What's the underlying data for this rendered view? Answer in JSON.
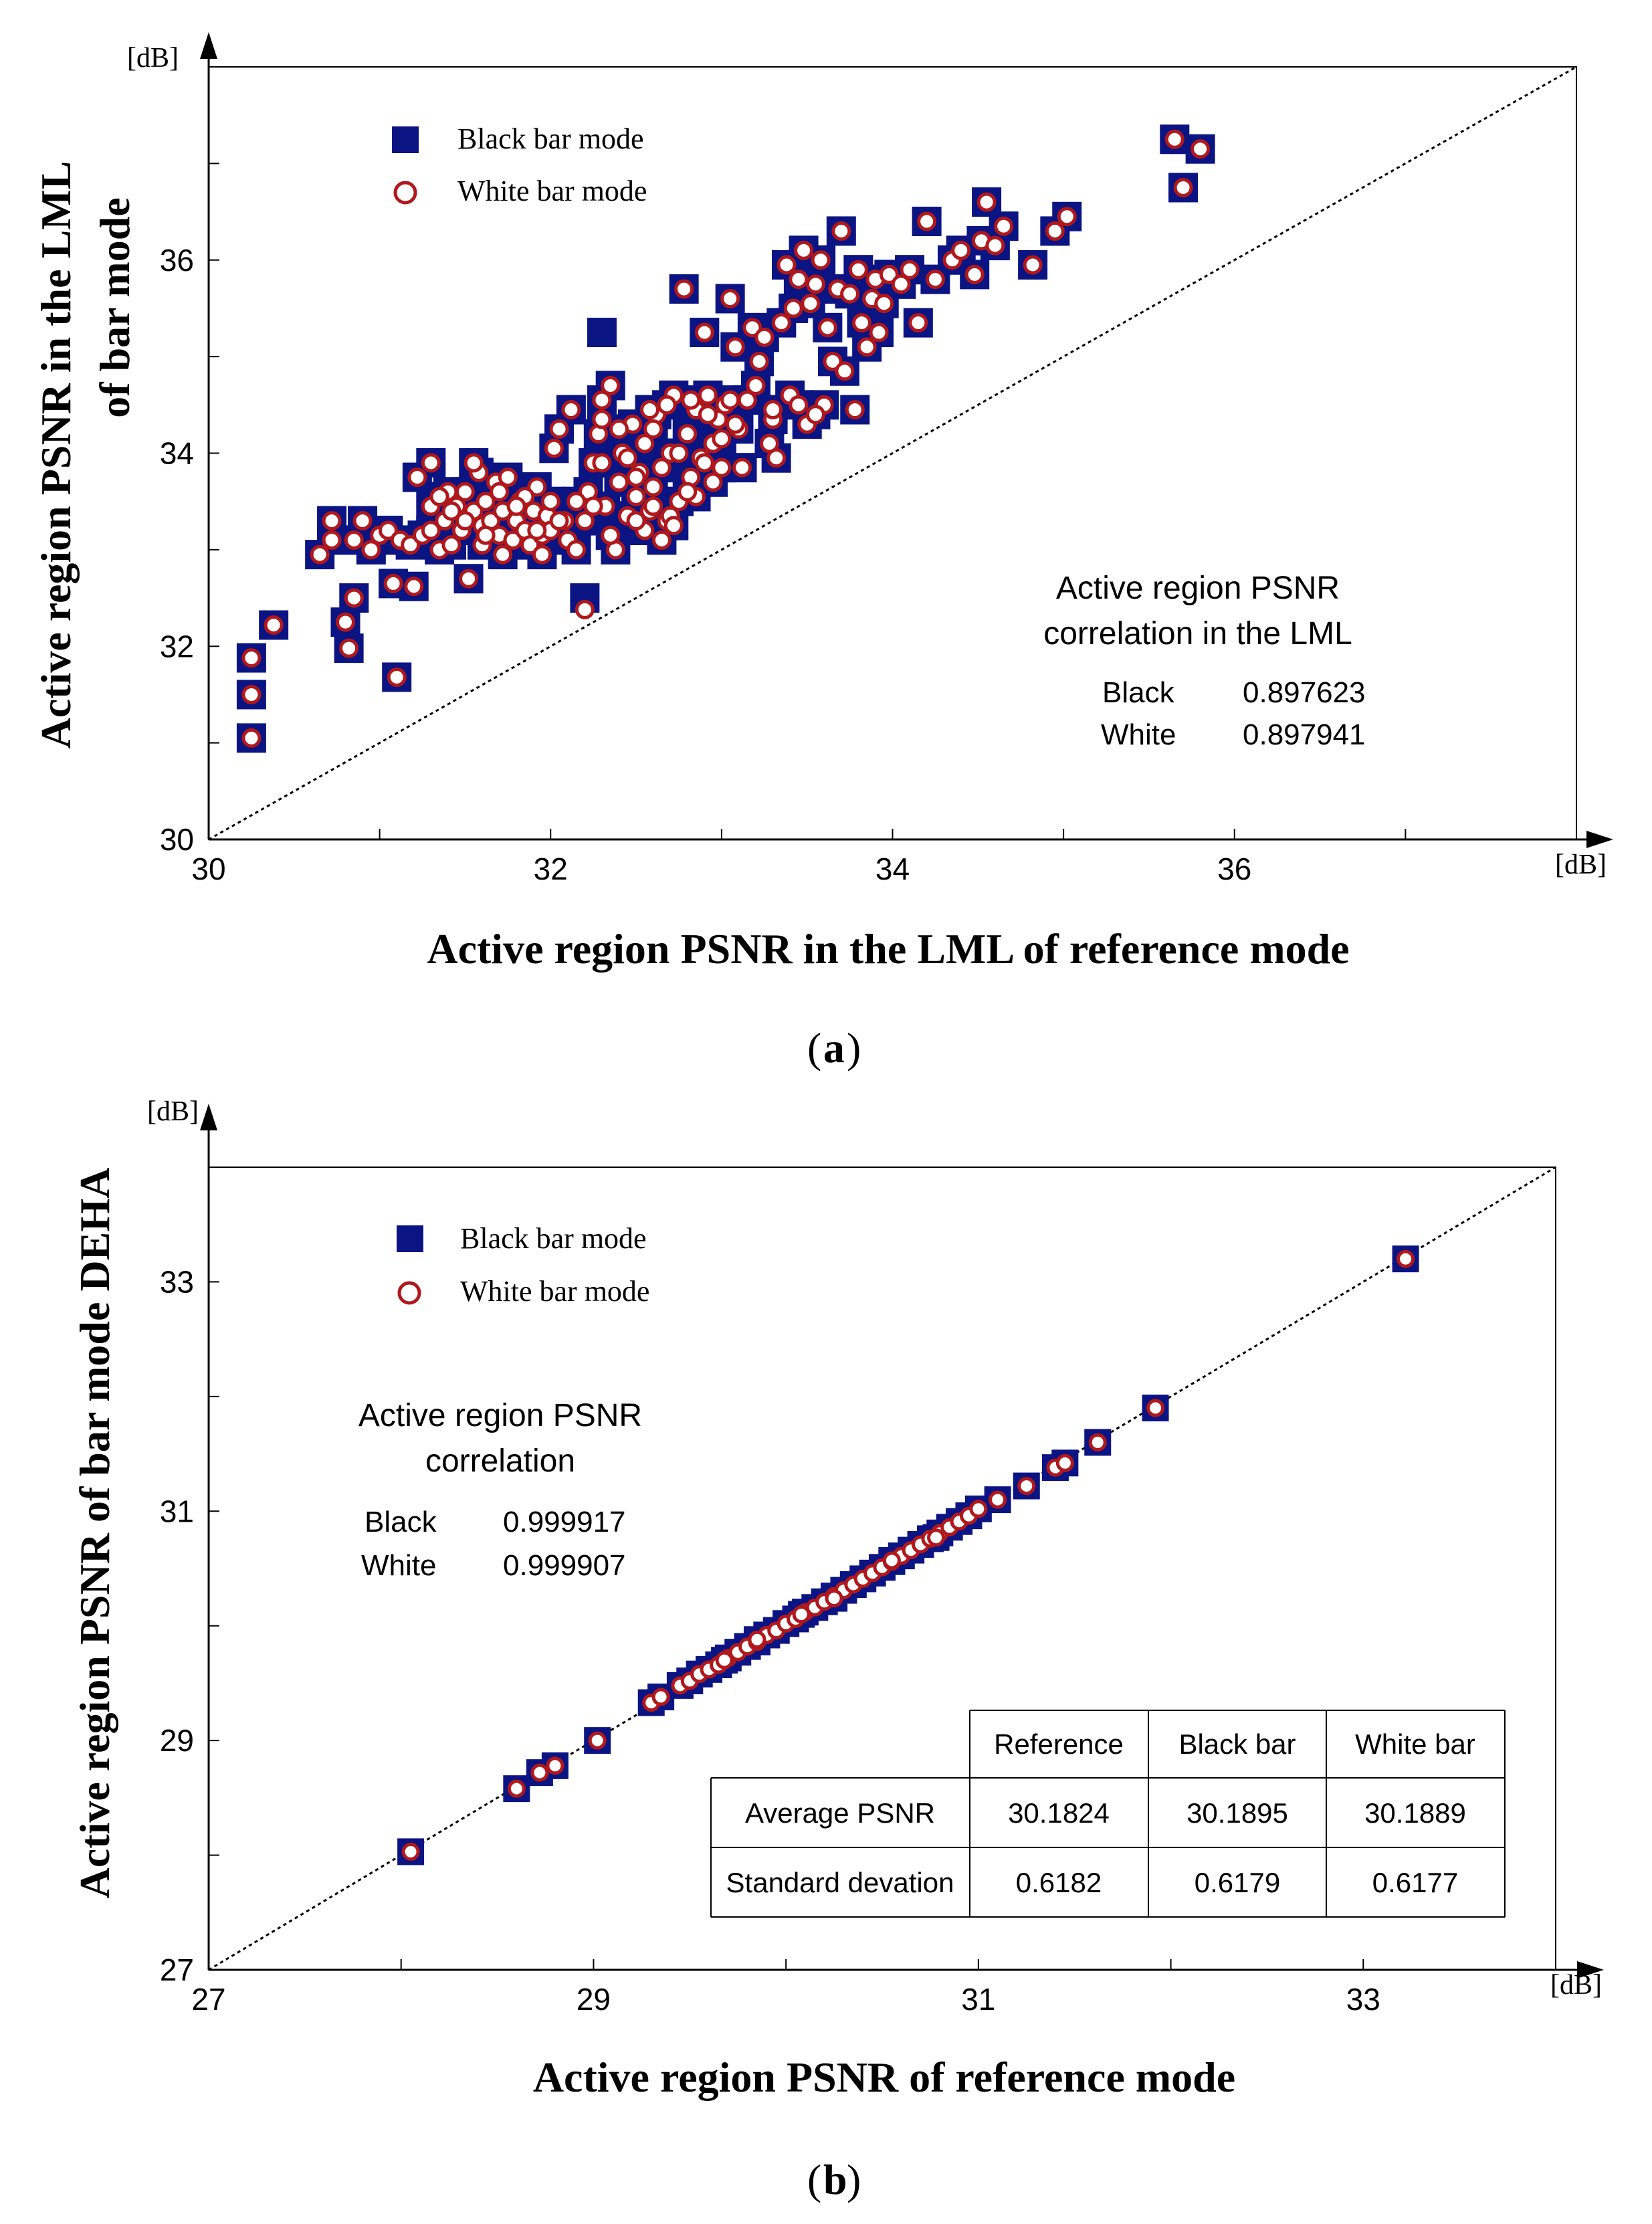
{
  "colors": {
    "black_marker": "#0b1483",
    "white_marker_stroke": "#b0181c",
    "white_marker_fill": "#ffffff",
    "axis": "#000000",
    "diag": "#000000"
  },
  "chart_data": [
    {
      "id": "a",
      "type": "scatter",
      "caption_letter": "a",
      "xlabel": "Active region PSNR in the LML of reference mode",
      "ylabel_line1": "Active region PSNR in the LML",
      "ylabel_line2": "of bar mode",
      "x_unit": "[dB]",
      "y_unit": "[dB]",
      "xlim": [
        30,
        38
      ],
      "ylim": [
        30,
        38
      ],
      "xticks": [
        30,
        32,
        34,
        36
      ],
      "yticks": [
        30,
        32,
        34,
        36
      ],
      "xtick_labels": [
        "30",
        "32",
        "34",
        "36"
      ],
      "ytick_labels": [
        "30",
        "32",
        "34",
        "36"
      ],
      "legend": {
        "position": "top-left",
        "black_label": "Black bar mode",
        "white_label": "White bar mode"
      },
      "annotation": {
        "title_line1": "Active region PSNR",
        "title_line2": "correlation in the LML",
        "rows": [
          {
            "label": "Black",
            "value": "0.897623"
          },
          {
            "label": "White",
            "value": "0.897941"
          }
        ]
      },
      "series": [
        {
          "name": "Black bar mode",
          "marker": "square",
          "outliers": [
            [
              32.3,
              35.25
            ],
            [
              32.2,
              32.5
            ]
          ]
        },
        {
          "name": "White bar mode",
          "marker": "circle",
          "outliers": [
            [
              32.2,
              32.38
            ]
          ]
        }
      ],
      "points": [
        [
          30.25,
          31.05
        ],
        [
          30.25,
          31.5
        ],
        [
          30.25,
          31.88
        ],
        [
          30.38,
          32.22
        ],
        [
          30.8,
          32.25
        ],
        [
          30.82,
          31.98
        ],
        [
          30.85,
          32.5
        ],
        [
          31.1,
          31.68
        ],
        [
          31.08,
          32.65
        ],
        [
          31.2,
          32.62
        ],
        [
          31.22,
          33.75
        ],
        [
          31.3,
          33.9
        ],
        [
          30.65,
          32.95
        ],
        [
          30.72,
          33.1
        ],
        [
          30.72,
          33.3
        ],
        [
          30.85,
          33.1
        ],
        [
          30.9,
          33.3
        ],
        [
          30.95,
          33.0
        ],
        [
          31.0,
          33.15
        ],
        [
          31.05,
          33.2
        ],
        [
          31.12,
          33.1
        ],
        [
          31.18,
          33.05
        ],
        [
          31.25,
          33.15
        ],
        [
          31.3,
          33.2
        ],
        [
          31.35,
          33.0
        ],
        [
          31.38,
          33.3
        ],
        [
          31.42,
          33.05
        ],
        [
          31.45,
          33.45
        ],
        [
          31.48,
          33.2
        ],
        [
          31.5,
          33.6
        ],
        [
          31.52,
          32.7
        ],
        [
          31.55,
          33.4
        ],
        [
          31.58,
          33.8
        ],
        [
          31.6,
          33.25
        ],
        [
          31.62,
          33.5
        ],
        [
          31.65,
          33.3
        ],
        [
          31.68,
          33.7
        ],
        [
          31.7,
          33.15
        ],
        [
          31.72,
          33.4
        ],
        [
          31.75,
          33.75
        ],
        [
          31.78,
          33.1
        ],
        [
          31.8,
          33.3
        ],
        [
          31.82,
          33.5
        ],
        [
          31.85,
          33.2
        ],
        [
          31.88,
          33.05
        ],
        [
          31.9,
          33.4
        ],
        [
          31.92,
          33.65
        ],
        [
          31.95,
          33.15
        ],
        [
          31.98,
          33.35
        ],
        [
          32.0,
          33.5
        ],
        [
          32.02,
          34.05
        ],
        [
          32.05,
          34.25
        ],
        [
          32.08,
          33.3
        ],
        [
          32.1,
          33.1
        ],
        [
          32.12,
          34.45
        ],
        [
          32.15,
          33.0
        ],
        [
          31.3,
          33.45
        ],
        [
          31.4,
          33.6
        ],
        [
          31.55,
          33.9
        ],
        [
          31.6,
          33.05
        ],
        [
          31.72,
          32.95
        ],
        [
          31.85,
          33.55
        ],
        [
          31.95,
          32.95
        ],
        [
          32.0,
          33.2
        ],
        [
          32.2,
          33.3
        ],
        [
          32.22,
          33.6
        ],
        [
          32.25,
          33.9
        ],
        [
          32.28,
          34.2
        ],
        [
          32.3,
          34.55
        ],
        [
          32.32,
          33.45
        ],
        [
          32.35,
          34.7
        ],
        [
          32.38,
          33.0
        ],
        [
          32.4,
          33.7
        ],
        [
          32.42,
          34.0
        ],
        [
          32.45,
          33.35
        ],
        [
          32.48,
          34.3
        ],
        [
          32.5,
          33.55
        ],
        [
          32.52,
          33.8
        ],
        [
          32.55,
          34.1
        ],
        [
          32.58,
          33.4
        ],
        [
          32.6,
          33.65
        ],
        [
          32.62,
          34.4
        ],
        [
          32.65,
          33.85
        ],
        [
          32.68,
          33.3
        ],
        [
          32.7,
          34.0
        ],
        [
          32.72,
          34.6
        ],
        [
          32.75,
          33.5
        ],
        [
          32.78,
          35.7
        ],
        [
          32.8,
          34.2
        ],
        [
          32.82,
          33.75
        ],
        [
          32.85,
          34.45
        ],
        [
          32.88,
          33.95
        ],
        [
          32.9,
          35.25
        ],
        [
          32.92,
          34.6
        ],
        [
          32.95,
          34.1
        ],
        [
          32.98,
          34.35
        ],
        [
          33.0,
          33.85
        ],
        [
          33.02,
          34.5
        ],
        [
          33.05,
          35.6
        ],
        [
          33.08,
          35.1
        ],
        [
          33.1,
          34.25
        ],
        [
          33.12,
          33.85
        ],
        [
          33.15,
          34.55
        ],
        [
          33.18,
          35.3
        ],
        [
          33.2,
          34.7
        ],
        [
          33.22,
          34.95
        ],
        [
          33.25,
          35.2
        ],
        [
          33.28,
          34.1
        ],
        [
          33.3,
          34.35
        ],
        [
          33.32,
          33.95
        ],
        [
          33.35,
          35.35
        ],
        [
          33.38,
          35.95
        ],
        [
          33.4,
          34.6
        ],
        [
          33.42,
          35.5
        ],
        [
          33.45,
          35.8
        ],
        [
          33.48,
          36.1
        ],
        [
          33.5,
          34.3
        ],
        [
          33.52,
          35.55
        ],
        [
          33.55,
          35.75
        ],
        [
          33.58,
          36.0
        ],
        [
          33.6,
          34.5
        ],
        [
          33.62,
          35.3
        ],
        [
          33.65,
          34.95
        ],
        [
          33.68,
          35.7
        ],
        [
          33.7,
          36.3
        ],
        [
          33.72,
          34.85
        ],
        [
          33.75,
          35.65
        ],
        [
          33.78,
          34.45
        ],
        [
          33.8,
          35.9
        ],
        [
          33.82,
          35.35
        ],
        [
          33.85,
          35.1
        ],
        [
          33.88,
          35.6
        ],
        [
          33.9,
          35.8
        ],
        [
          33.92,
          35.25
        ],
        [
          33.95,
          35.55
        ],
        [
          33.98,
          35.85
        ],
        [
          34.05,
          35.75
        ],
        [
          34.1,
          35.9
        ],
        [
          34.15,
          35.35
        ],
        [
          34.2,
          36.4
        ],
        [
          34.25,
          35.8
        ],
        [
          34.35,
          36.0
        ],
        [
          34.4,
          36.1
        ],
        [
          34.48,
          35.85
        ],
        [
          34.52,
          36.2
        ],
        [
          34.55,
          36.6
        ],
        [
          34.6,
          36.15
        ],
        [
          34.65,
          36.35
        ],
        [
          34.82,
          35.95
        ],
        [
          34.95,
          36.3
        ],
        [
          35.02,
          36.45
        ],
        [
          35.65,
          37.25
        ],
        [
          35.7,
          36.75
        ],
        [
          35.8,
          37.15
        ],
        [
          32.85,
          33.55
        ],
        [
          32.55,
          33.2
        ],
        [
          32.35,
          33.15
        ],
        [
          32.65,
          33.1
        ],
        [
          32.95,
          33.7
        ],
        [
          32.45,
          33.95
        ],
        [
          32.6,
          34.25
        ],
        [
          32.7,
          33.35
        ],
        [
          32.8,
          33.6
        ],
        [
          32.9,
          33.9
        ],
        [
          33.0,
          34.15
        ],
        [
          33.05,
          34.55
        ],
        [
          32.75,
          34.0
        ],
        [
          32.5,
          33.75
        ],
        [
          32.3,
          33.9
        ],
        [
          32.4,
          34.25
        ],
        [
          32.25,
          33.45
        ],
        [
          32.15,
          33.5
        ],
        [
          32.05,
          33.3
        ],
        [
          31.92,
          33.2
        ],
        [
          31.8,
          33.45
        ],
        [
          31.7,
          33.6
        ],
        [
          31.62,
          33.15
        ],
        [
          31.5,
          33.3
        ],
        [
          31.42,
          33.4
        ],
        [
          31.35,
          33.55
        ],
        [
          32.3,
          34.35
        ],
        [
          32.58,
          34.45
        ],
        [
          32.68,
          34.5
        ],
        [
          32.82,
          34.55
        ],
        [
          32.92,
          34.4
        ],
        [
          33.08,
          34.3
        ],
        [
          33.3,
          34.45
        ],
        [
          33.45,
          34.5
        ],
        [
          33.55,
          34.4
        ],
        [
          32.6,
          33.45
        ],
        [
          32.5,
          33.3
        ],
        [
          32.72,
          33.25
        ]
      ]
    },
    {
      "id": "b",
      "type": "scatter",
      "caption_letter": "b",
      "xlabel": "Active region PSNR of reference mode",
      "ylabel_line1": "Active region PSNR of bar mode DEHA",
      "ylabel_line2": "",
      "x_unit": "[dB]",
      "y_unit": "[dB]",
      "xlim": [
        27,
        34
      ],
      "ylim": [
        27,
        34
      ],
      "xticks": [
        27,
        29,
        31,
        33
      ],
      "yticks": [
        27,
        29,
        31,
        33
      ],
      "xtick_labels": [
        "27",
        "29",
        "31",
        "33"
      ],
      "ytick_labels": [
        "27",
        "29",
        "31",
        "33"
      ],
      "legend": {
        "position": "top-left",
        "black_label": "Black bar mode",
        "white_label": "White bar mode"
      },
      "annotation": {
        "title_line1": "Active region PSNR",
        "title_line2": "correlation",
        "rows": [
          {
            "label": "Black",
            "value": "0.999917"
          },
          {
            "label": "White",
            "value": "0.999907"
          }
        ]
      },
      "table": {
        "columns": [
          "Reference",
          "Black bar",
          "White bar"
        ],
        "rows": [
          {
            "label": "Average PSNR",
            "values": [
              "30.1824",
              "30.1895",
              "30.1889"
            ]
          },
          {
            "label": "Standard devation",
            "values": [
              "0.6182",
              "0.6179",
              "0.6177"
            ]
          }
        ]
      },
      "series": [
        {
          "name": "Black bar mode",
          "marker": "square"
        },
        {
          "name": "White bar mode",
          "marker": "circle"
        }
      ],
      "points": [
        [
          28.05,
          28.03
        ],
        [
          28.6,
          28.58
        ],
        [
          28.72,
          28.72
        ],
        [
          28.8,
          28.78
        ],
        [
          29.02,
          29.0
        ],
        [
          29.3,
          29.33
        ],
        [
          29.35,
          29.38
        ],
        [
          29.45,
          29.48
        ],
        [
          29.5,
          29.52
        ],
        [
          29.55,
          29.58
        ],
        [
          29.6,
          29.62
        ],
        [
          29.65,
          29.66
        ],
        [
          29.7,
          29.72
        ],
        [
          29.75,
          29.77
        ],
        [
          29.8,
          29.82
        ],
        [
          29.85,
          29.86
        ],
        [
          29.9,
          29.92
        ],
        [
          29.95,
          29.96
        ],
        [
          30.0,
          30.02
        ],
        [
          30.05,
          30.06
        ],
        [
          30.1,
          30.12
        ],
        [
          30.15,
          30.16
        ],
        [
          30.2,
          30.21
        ],
        [
          30.25,
          30.26
        ],
        [
          30.3,
          30.31
        ],
        [
          30.35,
          30.36
        ],
        [
          30.4,
          30.41
        ],
        [
          30.45,
          30.46
        ],
        [
          30.5,
          30.51
        ],
        [
          30.55,
          30.56
        ],
        [
          30.6,
          30.61
        ],
        [
          30.65,
          30.66
        ],
        [
          30.7,
          30.71
        ],
        [
          30.75,
          30.76
        ],
        [
          30.8,
          30.81
        ],
        [
          30.85,
          30.86
        ],
        [
          30.9,
          30.91
        ],
        [
          30.95,
          30.96
        ],
        [
          31.0,
          31.02
        ],
        [
          31.1,
          31.1
        ],
        [
          31.25,
          31.22
        ],
        [
          31.4,
          31.38
        ],
        [
          31.45,
          31.42
        ],
        [
          31.62,
          31.6
        ],
        [
          31.92,
          31.9
        ],
        [
          33.22,
          33.2
        ],
        [
          29.85,
          29.88
        ],
        [
          30.25,
          30.24
        ],
        [
          30.55,
          30.57
        ],
        [
          30.78,
          30.77
        ],
        [
          29.68,
          29.7
        ],
        [
          30.08,
          30.1
        ]
      ]
    }
  ]
}
